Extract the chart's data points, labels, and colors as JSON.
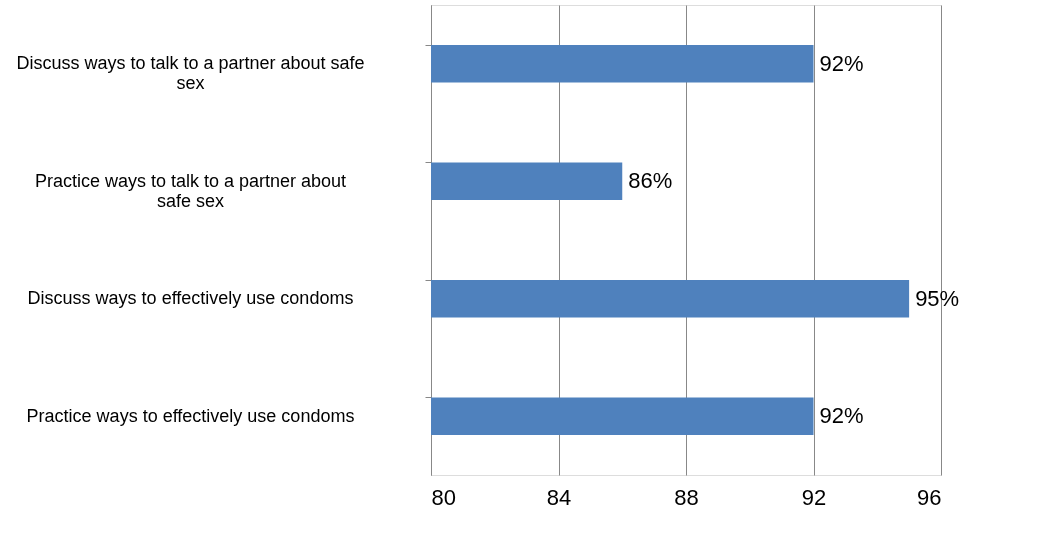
{
  "chart_data": {
    "type": "bar",
    "orientation": "horizontal",
    "categories": [
      "Discuss ways to talk to a partner about safe sex",
      "Practice ways to talk to a partner about safe sex",
      "Discuss ways to effectively use condoms",
      "Practice ways to effectively use condoms"
    ],
    "values": [
      92,
      86,
      95,
      92
    ],
    "value_labels": [
      "92%",
      "86%",
      "95%",
      "92%"
    ],
    "color": "#4f81bd",
    "xlim": [
      80,
      96
    ],
    "xticks": [
      80,
      84,
      88,
      92,
      96
    ],
    "grid": "x"
  }
}
